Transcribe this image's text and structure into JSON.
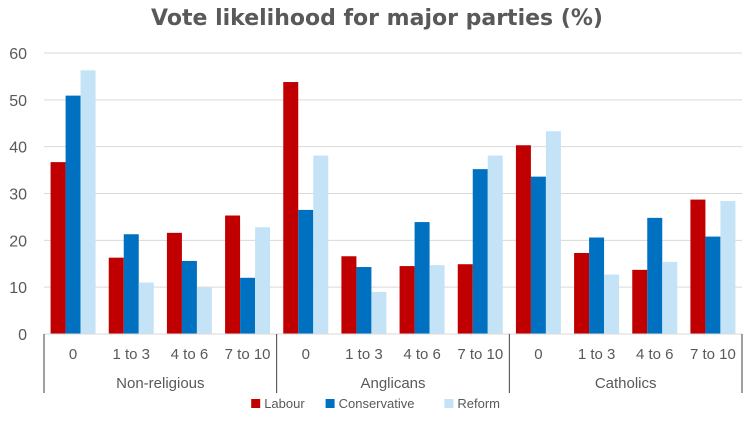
{
  "chart_data": {
    "type": "bar",
    "title": "Vote likelihood for major parties (%)",
    "xlabel": "",
    "ylabel": "",
    "ylim": [
      0,
      60
    ],
    "yticks": [
      0,
      10,
      20,
      30,
      40,
      50,
      60
    ],
    "grid": true,
    "legend_position": "bottom",
    "groups": [
      {
        "name": "Non-religious",
        "categories": [
          "0",
          "1 to 3",
          "4 to 6",
          "7 to 10"
        ]
      },
      {
        "name": "Anglicans",
        "categories": [
          "0",
          "1 to 3",
          "4 to 6",
          "7 to 10"
        ]
      },
      {
        "name": "Catholics",
        "categories": [
          "0",
          "1 to 3",
          "4 to 6",
          "7 to 10"
        ]
      }
    ],
    "series": [
      {
        "name": "Labour",
        "color": "#c00000",
        "values": [
          36.7,
          16.3,
          21.6,
          25.3,
          53.8,
          16.6,
          14.5,
          14.9,
          40.3,
          17.3,
          13.7,
          28.7
        ]
      },
      {
        "name": "Conservative",
        "color": "#0070c0",
        "values": [
          50.9,
          21.3,
          15.6,
          12.0,
          26.5,
          14.3,
          23.9,
          35.2,
          33.6,
          20.6,
          24.8,
          20.8
        ]
      },
      {
        "name": "Reform",
        "color": "#c5e3f6",
        "values": [
          56.3,
          11.0,
          9.9,
          22.8,
          38.1,
          9.0,
          14.7,
          38.1,
          43.3,
          12.7,
          15.4,
          28.4
        ]
      }
    ]
  }
}
